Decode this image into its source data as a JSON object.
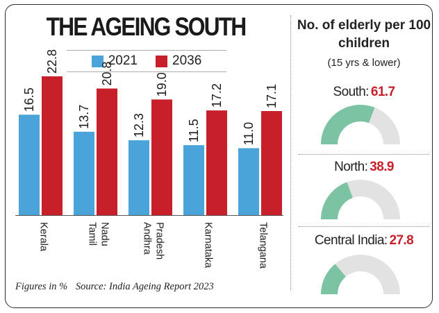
{
  "chart_data": [
    {
      "type": "bar",
      "title": "THE AGEING SOUTH",
      "categories": [
        "Kerala",
        "Tamil Nadu",
        "Andhra Pradesh",
        "Karnataka",
        "Telangana"
      ],
      "category_lines": [
        [
          "Kerala"
        ],
        [
          "Tamil",
          "Nadu"
        ],
        [
          "Andhra",
          "Pradesh"
        ],
        [
          "Karnataka"
        ],
        [
          "Telangana"
        ]
      ],
      "series": [
        {
          "name": "2021",
          "color": "#4aa4da",
          "values": [
            16.5,
            13.7,
            12.3,
            11.5,
            11.0
          ],
          "labels": [
            "16.5",
            "13.7",
            "12.3",
            "11.5",
            "11.0"
          ]
        },
        {
          "name": "2036",
          "color": "#c8202a",
          "values": [
            22.8,
            20.8,
            19.0,
            17.2,
            17.1
          ],
          "labels": [
            "22.8",
            "20.8",
            "19.0",
            "17.2",
            "17.1"
          ]
        }
      ],
      "ylim": [
        0,
        30
      ],
      "grid": false,
      "legend": "top"
    },
    {
      "type": "gauge",
      "title": "No. of elderly per 100 children",
      "subtitle": "(15 yrs & lower)",
      "max": 100,
      "fill_color": "#7cc3a3",
      "track_color": "#e2e2e2",
      "items": [
        {
          "name": "South:",
          "value": 61.7,
          "label": "61.7"
        },
        {
          "name": "North:",
          "value": 38.9,
          "label": "38.9"
        },
        {
          "name": "Central India:",
          "value": 27.8,
          "label": "27.8"
        }
      ]
    }
  ],
  "footnote": {
    "units": "Figures in %",
    "source": "Source: India Ageing Report 2023"
  }
}
